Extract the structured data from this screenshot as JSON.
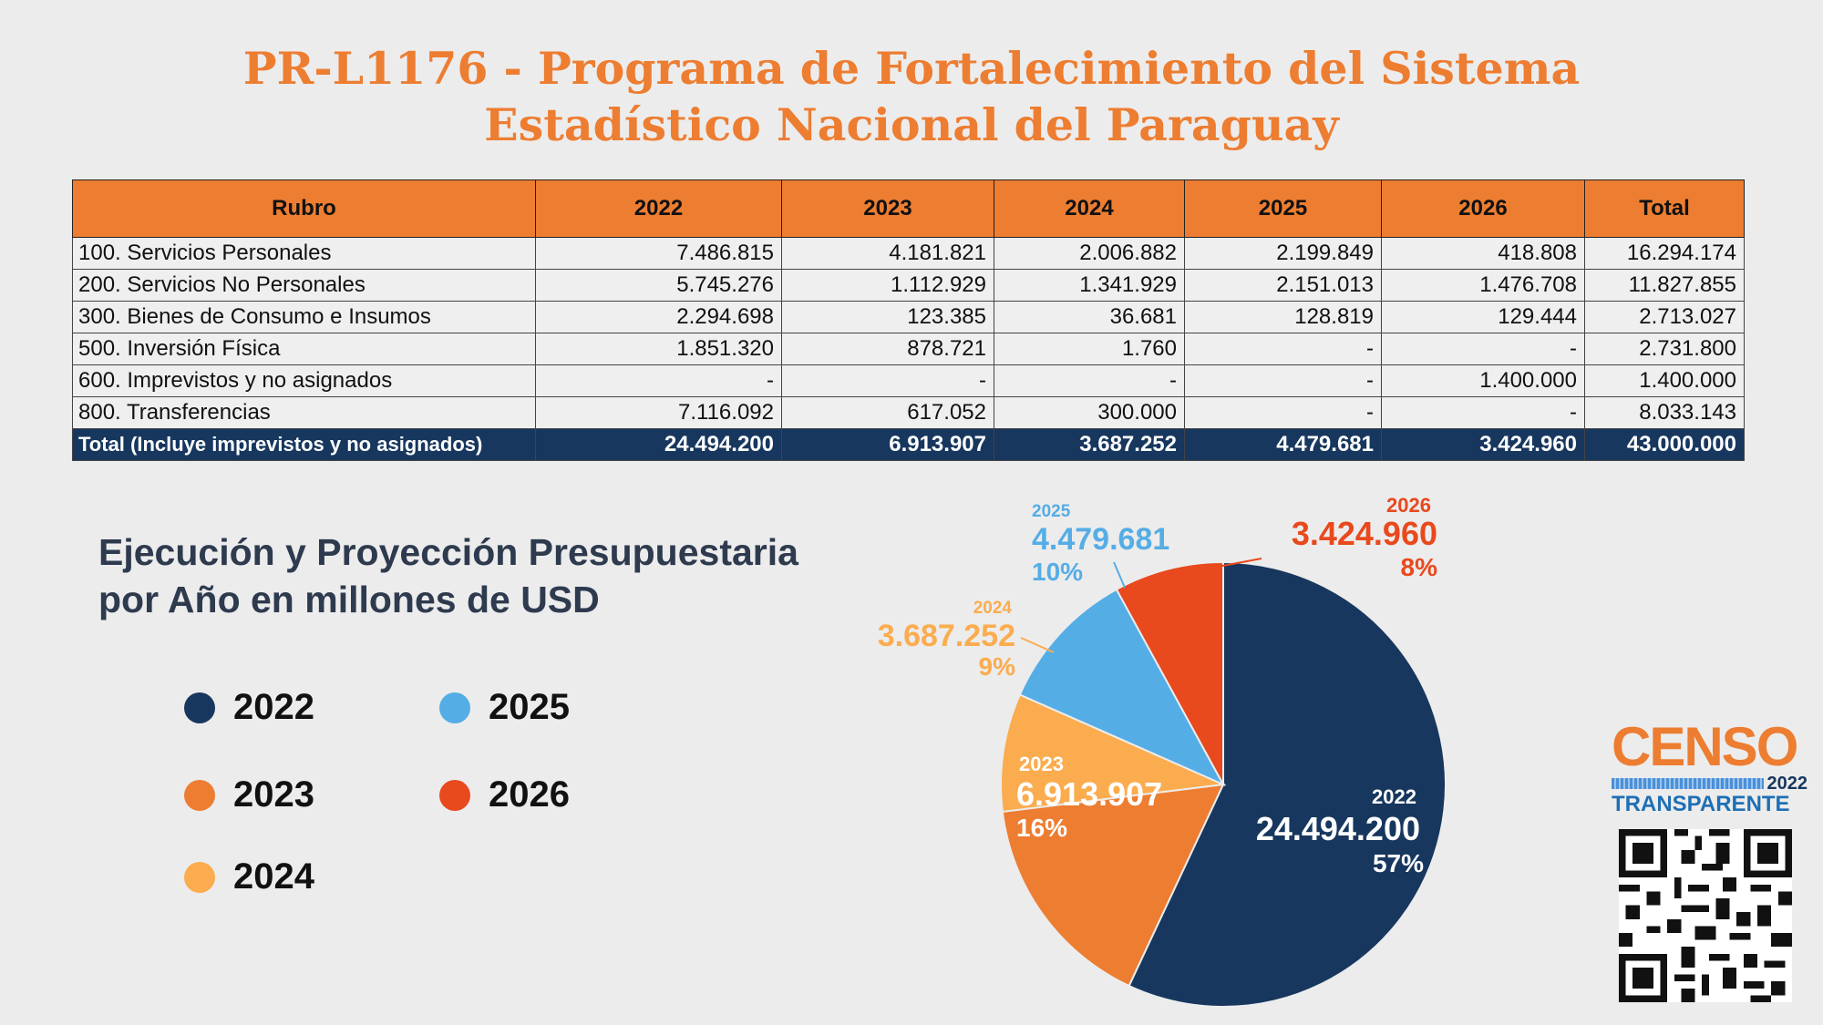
{
  "title": {
    "line1": "PR-L1176 - Programa de Fortalecimiento del Sistema",
    "line2": "Estadístico Nacional del Paraguay"
  },
  "table": {
    "headers": [
      "Rubro",
      "2022",
      "2023",
      "2024",
      "2025",
      "2026",
      "Total"
    ],
    "rows": [
      [
        "100. Servicios Personales",
        "7.486.815",
        "4.181.821",
        "2.006.882",
        "2.199.849",
        "418.808",
        "16.294.174"
      ],
      [
        "200. Servicios No Personales",
        "5.745.276",
        "1.112.929",
        "1.341.929",
        "2.151.013",
        "1.476.708",
        "11.827.855"
      ],
      [
        "300. Bienes de Consumo e Insumos",
        "2.294.698",
        "123.385",
        "36.681",
        "128.819",
        "129.444",
        "2.713.027"
      ],
      [
        "500. Inversión Física",
        "1.851.320",
        "878.721",
        "1.760",
        "-",
        "-",
        "2.731.800"
      ],
      [
        "600. Imprevistos y no asignados",
        "-",
        "-",
        "-",
        "-",
        "1.400.000",
        "1.400.000"
      ],
      [
        "800. Transferencias",
        "7.116.092",
        "617.052",
        "300.000",
        "-",
        "-",
        "8.033.143"
      ]
    ],
    "total_row": [
      "Total (Incluye imprevistos y no asignados)",
      "24.494.200",
      "6.913.907",
      "3.687.252",
      "4.479.681",
      "3.424.960",
      "43.000.000"
    ]
  },
  "chart_title": {
    "line1": "Ejecución y Proyección Presupuestaria",
    "line2": "por Año en millones de USD"
  },
  "chart_data": {
    "type": "pie",
    "title": "Ejecución y Proyección Presupuestaria por Año en millones de USD",
    "categories": [
      "2022",
      "2023",
      "2024",
      "2025",
      "2026"
    ],
    "values": [
      24494200,
      6913907,
      3687252,
      4479681,
      3424960
    ],
    "value_labels": [
      "24.494.200",
      "6.913.907",
      "3.687.252",
      "4.479.681",
      "3.424.960"
    ],
    "percent_labels": [
      "57%",
      "16%",
      "9%",
      "10%",
      "8%"
    ],
    "colors": [
      "#17375e",
      "#ed7d31",
      "#fbac4e",
      "#55ade5",
      "#e8491d"
    ],
    "legend_position": "left"
  },
  "logo": {
    "censo": "CENSO",
    "year": "2022",
    "transparente": "TRANSPARENTE"
  }
}
